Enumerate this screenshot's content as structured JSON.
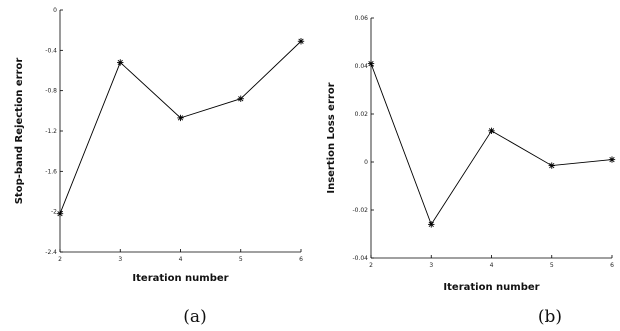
{
  "chart_data": [
    {
      "type": "line",
      "panel_label": "(a)",
      "xlabel": "Iteration number",
      "ylabel": "Stop-band Rejection error",
      "x": [
        2,
        3,
        4,
        5,
        6
      ],
      "series": [
        {
          "values": [
            -2.02,
            -0.52,
            -1.07,
            -0.88,
            -0.31
          ]
        }
      ],
      "xlim": [
        2,
        6
      ],
      "ylim": [
        -2.4,
        0
      ],
      "xticks": [
        "2",
        "3",
        "4",
        "5",
        "6"
      ],
      "yticks": [
        "0",
        "-0.4",
        "-0.8",
        "-1.2",
        "-1.6",
        "-2",
        "-2.4"
      ],
      "marker": "asterisk",
      "grid": false
    },
    {
      "type": "line",
      "panel_label": "(b)",
      "xlabel": "Iteration number",
      "ylabel": "Insertion Loss error",
      "x": [
        2,
        3,
        4,
        5,
        6
      ],
      "series": [
        {
          "values": [
            0.041,
            -0.026,
            0.013,
            -0.0015,
            0.001
          ]
        }
      ],
      "xlim": [
        2,
        6
      ],
      "ylim": [
        -0.04,
        0.06
      ],
      "xticks": [
        "2",
        "3",
        "4",
        "5",
        "6"
      ],
      "yticks": [
        "0.06",
        "0.04",
        "0.02",
        "0",
        "-0.02",
        "-0.04"
      ],
      "marker": "asterisk",
      "grid": false
    }
  ]
}
